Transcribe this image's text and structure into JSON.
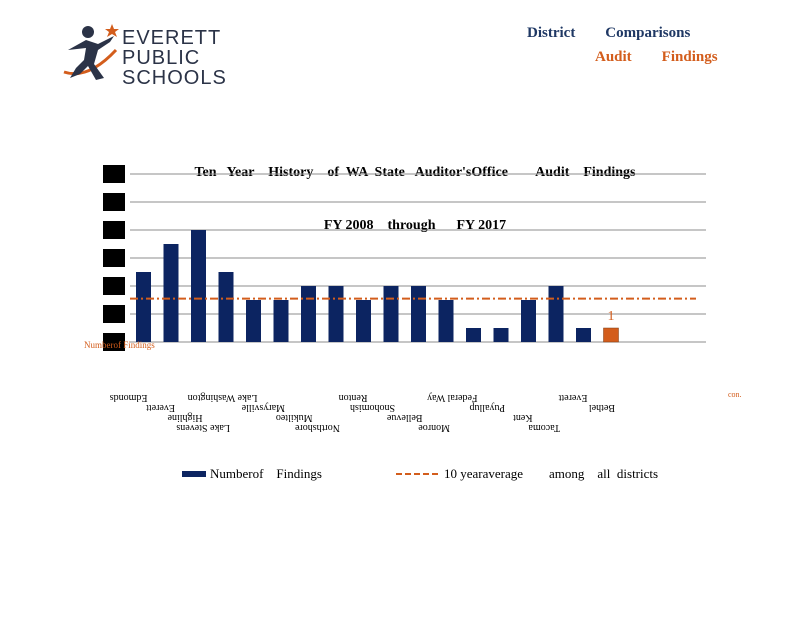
{
  "logo": {
    "line1": "EVERETT",
    "line2": "PUBLIC",
    "line3": "SCHOOLS"
  },
  "header": {
    "line1": "District        Comparisons",
    "line2": "Audit        Findings"
  },
  "chart_data": {
    "type": "bar",
    "title_line1": "Ten   Year    History    of  WA  State   Auditor'sOffice        Audit    Findings",
    "title_line2": "FY 2008    through      FY 2017",
    "ylim": [
      0,
      6
    ],
    "grid": true,
    "categories": [
      "Edmonds",
      "Everett",
      "Highline",
      "Lake Stevens",
      "Lake Washington",
      "Marysville",
      "Mukilteo",
      "Northshore",
      "Renton",
      "Snohomish",
      "Bellevue",
      "Monroe",
      "Federal Way",
      "Puyallup",
      "Kent",
      "Tacoma",
      "Everett",
      "Bethel"
    ],
    "values": [
      2.5,
      3.5,
      4,
      2.5,
      1.5,
      1.5,
      2,
      2,
      1.5,
      2,
      2,
      1.5,
      0.5,
      0.5,
      1.5,
      2,
      0.5,
      0.5
    ],
    "highlight_index": 17,
    "highlight_label": "1",
    "average": 1.55,
    "y_axis_label": "Numberof Findings",
    "corner_note": "con.",
    "series": [
      {
        "name": "Numberof    Findings"
      },
      {
        "name": "10 yearaverage        among    all  districts"
      }
    ],
    "colors": {
      "bar": "#0c2461",
      "highlight": "#d35d1c",
      "average": "#d35d1c",
      "grid": "#8c8c8c"
    },
    "legend_position": "bottom"
  }
}
